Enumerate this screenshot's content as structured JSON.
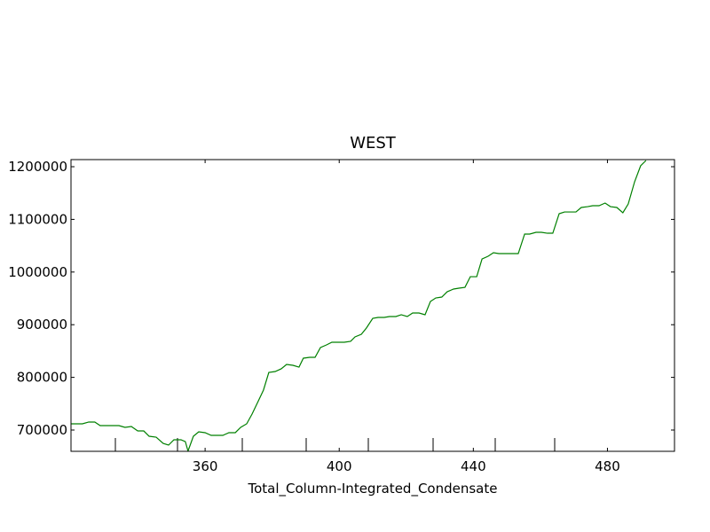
{
  "chart_data": {
    "type": "line",
    "title": "WEST",
    "x_label": "Total_Column-Integrated_Condensate",
    "x": [
      320.0,
      323.4,
      325.3,
      327.1,
      328.7,
      332.4,
      334.3,
      336.1,
      338.0,
      339.9,
      341.7,
      343.3,
      345.4,
      347.5,
      349.1,
      350.7,
      352.8,
      354.1,
      354.9,
      356.5,
      358.1,
      360.0,
      361.8,
      363.7,
      365.3,
      367.1,
      369.0,
      370.6,
      372.4,
      374.0,
      375.9,
      377.4,
      379.0,
      380.9,
      382.7,
      384.3,
      386.2,
      388.0,
      389.3,
      391.2,
      392.8,
      394.4,
      396.2,
      397.8,
      399.7,
      401.5,
      403.4,
      404.7,
      406.6,
      408.1,
      410.0,
      411.6,
      413.4,
      415.0,
      416.9,
      418.5,
      420.3,
      421.9,
      423.8,
      425.6,
      427.2,
      428.8,
      430.6,
      432.2,
      434.1,
      435.7,
      437.5,
      439.1,
      441.0,
      442.6,
      444.4,
      446.0,
      447.6,
      449.4,
      451.0,
      453.4,
      455.3,
      456.8,
      458.7,
      460.3,
      462.1,
      463.7,
      465.6,
      467.2,
      469.0,
      470.6,
      472.2,
      474.1,
      475.6,
      477.5,
      479.3,
      480.9,
      482.8,
      484.6,
      486.2,
      488.1,
      489.9,
      491.5
    ],
    "series": [
      {
        "name": "WEST",
        "color": "#008000",
        "values": [
          711800,
          711800,
          715200,
          715200,
          708400,
          708400,
          708400,
          705100,
          706700,
          698300,
          698300,
          688200,
          686500,
          674700,
          671400,
          681500,
          681500,
          678100,
          660000,
          688200,
          696600,
          695000,
          689900,
          689900,
          689900,
          695000,
          695000,
          705100,
          711800,
          730300,
          755600,
          775800,
          809400,
          811100,
          816200,
          824600,
          822900,
          819500,
          836400,
          838000,
          838000,
          856600,
          861600,
          866700,
          866700,
          866700,
          868400,
          876800,
          881800,
          893600,
          912100,
          913800,
          913800,
          915500,
          915500,
          918900,
          915500,
          922200,
          922200,
          918900,
          944100,
          950800,
          952500,
          962600,
          967700,
          969400,
          971000,
          991200,
          991200,
          1024900,
          1030000,
          1036700,
          1035000,
          1035000,
          1035000,
          1035000,
          1072100,
          1072100,
          1075400,
          1075400,
          1073700,
          1073700,
          1110800,
          1114100,
          1114100,
          1114100,
          1122600,
          1124200,
          1125900,
          1125900,
          1131000,
          1124200,
          1122600,
          1112500,
          1129300,
          1171400,
          1201700,
          1211800
        ]
      }
    ],
    "xlim": [
      320,
      500
    ],
    "ylim": [
      659600,
      1213500
    ],
    "xticks": [
      360,
      400,
      440,
      480
    ],
    "yticks": [
      700000,
      800000,
      900000,
      1000000,
      1100000,
      1200000
    ]
  }
}
